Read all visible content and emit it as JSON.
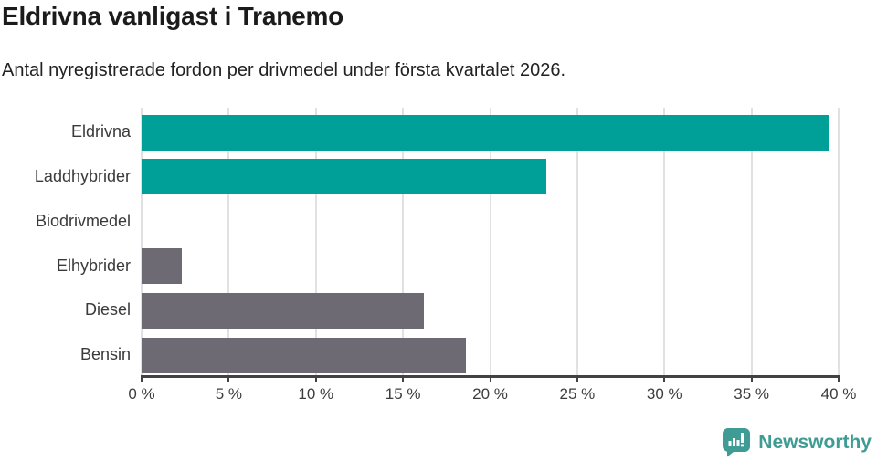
{
  "title": "Eldrivna vanligast i Tranemo",
  "subtitle": "Antal nyregistrerade fordon per drivmedel under första kvartalet 2026.",
  "chart_data": {
    "type": "bar",
    "orientation": "horizontal",
    "title": "Eldrivna vanligast i Tranemo",
    "subtitle": "Antal nyregistrerade fordon per drivmedel under första kvartalet 2026.",
    "categories": [
      "Eldrivna",
      "Laddhybrider",
      "Biodrivmedel",
      "Elhybrider",
      "Diesel",
      "Bensin"
    ],
    "values": [
      39.5,
      23.2,
      0,
      2.3,
      16.2,
      18.6
    ],
    "unit": "%",
    "bar_colors": [
      "#00a099",
      "#00a099",
      "#6e6a73",
      "#6e6a73",
      "#6e6a73",
      "#6e6a73"
    ],
    "xlim": [
      0,
      40
    ],
    "x_ticks": [
      "0 %",
      "5 %",
      "10 %",
      "15 %",
      "20 %",
      "25 %",
      "30 %",
      "35 %",
      "40 %"
    ],
    "x_tick_values": [
      0,
      5,
      10,
      15,
      20,
      25,
      30,
      35,
      40
    ],
    "grid": true,
    "legend": "none"
  },
  "colors": {
    "highlight": "#00a099",
    "neutral": "#6e6a73",
    "gridline": "#e1e1e1",
    "axis": "#424242",
    "text": "#3a3a3a"
  },
  "branding": {
    "logo_text": "Newsworthy",
    "logo_color": "#3f9c95",
    "logo_icon": "bar-chart-speech-bubble-icon"
  }
}
